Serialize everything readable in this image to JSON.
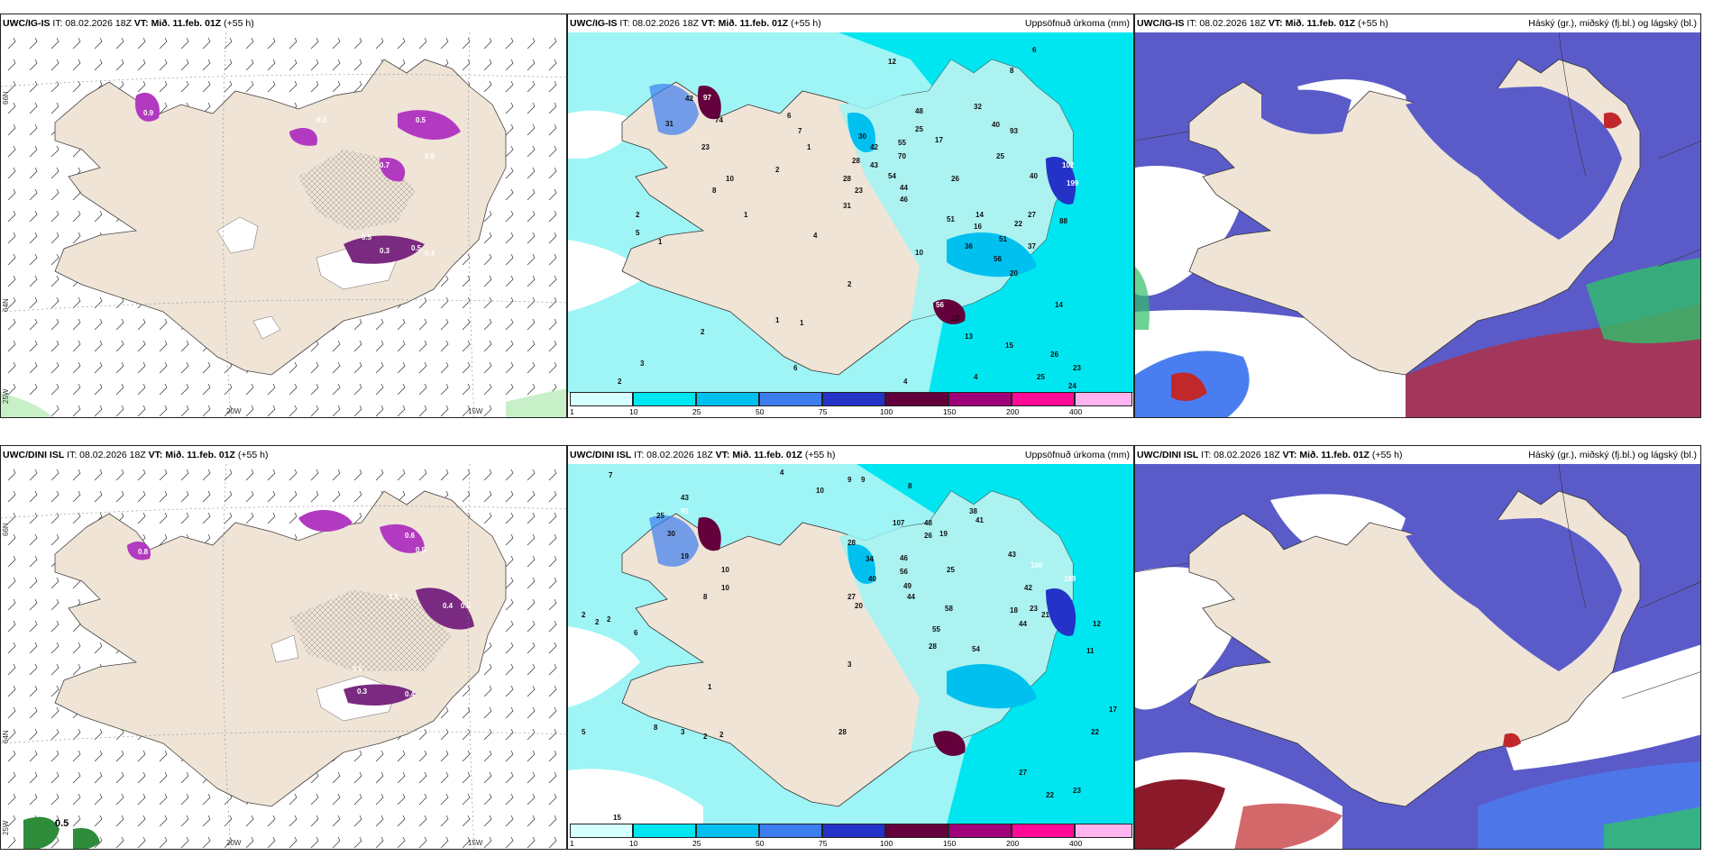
{
  "rows": [
    {
      "model": "UWC/IG-IS",
      "panels": [
        {
          "model": "UWC/IG-IS",
          "it_label": "IT: 08.02.2026 18Z",
          "vt_label": "VT: Mið. 11.feb. 01Z",
          "lead": "(+55 h)",
          "subtitle": ""
        },
        {
          "model": "UWC/IG-IS",
          "it_label": "IT: 08.02.2026 18Z",
          "vt_label": "VT: Mið. 11.feb. 01Z",
          "lead": "(+55 h)",
          "subtitle": "Uppsöfnuð úrkoma (mm)"
        },
        {
          "model": "UWC/IG-IS",
          "it_label": "IT: 08.02.2026 18Z",
          "vt_label": "VT: Mið. 11.feb. 01Z",
          "lead": "(+55 h)",
          "subtitle": "Háský (gr.), miðský (fj.bl.) og lágský (bl.)"
        }
      ],
      "precip_labels": [
        "42",
        "97",
        "74",
        "31",
        "23",
        "10",
        "8",
        "6",
        "7",
        "1",
        "2",
        "1",
        "2",
        "5",
        "1",
        "4",
        "2",
        "1",
        "1",
        "2",
        "3",
        "2",
        "4",
        "6",
        "48",
        "30",
        "42",
        "25",
        "28",
        "43",
        "23",
        "28",
        "54",
        "44",
        "46",
        "70",
        "55",
        "17",
        "32",
        "40",
        "93",
        "26",
        "25",
        "51",
        "16",
        "14",
        "22",
        "27",
        "51",
        "56",
        "88",
        "37",
        "102",
        "199",
        "40",
        "8",
        "12",
        "6",
        "4",
        "13",
        "14",
        "15",
        "26",
        "23",
        "25",
        "24",
        "56",
        "13",
        "10",
        "36",
        "20",
        "31"
      ],
      "precip_labels_pos_note": "",
      "wind_contour_values": [
        "0.9",
        "0.3",
        "0.5",
        "0.7",
        "0.6",
        "0.5",
        "0.3",
        "0.5",
        "0.4",
        "0.6"
      ]
    },
    {
      "model": "UWC/DINI ISL",
      "panels": [
        {
          "model": "UWC/DINI ISL",
          "it_label": "IT: 08.02.2026 18Z",
          "vt_label": "VT: Mið. 11.feb. 01Z",
          "lead": "(+55 h)",
          "subtitle": ""
        },
        {
          "model": "UWC/DINI ISL",
          "it_label": "IT: 08.02.2026 18Z",
          "vt_label": "VT: Mið. 11.feb. 01Z",
          "lead": "(+55 h)",
          "subtitle": "Uppsöfnuð úrkoma (mm)"
        },
        {
          "model": "UWC/DINI ISL",
          "it_label": "IT: 08.02.2026 18Z",
          "vt_label": "VT: Mið. 11.feb. 01Z",
          "lead": "(+55 h)",
          "subtitle": "Háský (gr.), miðský (fj.bl.) og lágský (bl.)"
        }
      ],
      "precip_labels": [
        "7",
        "4",
        "10",
        "9",
        "9",
        "8",
        "43",
        "25",
        "91",
        "30",
        "19",
        "10",
        "10",
        "8",
        "2",
        "6",
        "2",
        "2",
        "28",
        "34",
        "40",
        "107",
        "46",
        "56",
        "49",
        "44",
        "27",
        "20",
        "48",
        "26",
        "19",
        "25",
        "38",
        "41",
        "43",
        "100",
        "42",
        "189",
        "28",
        "55",
        "54",
        "58",
        "23",
        "44",
        "18",
        "21",
        "12",
        "11",
        "5",
        "8",
        "3",
        "2",
        "2",
        "1",
        "3",
        "28",
        "15",
        "17",
        "22",
        "27",
        "22",
        "23"
      ],
      "wind_contour_values": [
        "0.6",
        "0.5",
        "0.8",
        "0.4",
        "0.6",
        "0.5",
        "0.3",
        "0.4",
        "0.5"
      ],
      "legend_value": "0.5"
    }
  ],
  "axes": {
    "lon_labels": [
      "20W",
      "15W"
    ],
    "lat_labels": [
      "66N",
      "64N",
      "25W"
    ]
  },
  "colorbar": {
    "ticks": [
      "1",
      "10",
      "25",
      "50",
      "75",
      "100",
      "150",
      "200",
      "400"
    ],
    "colors": [
      "#d6ffff",
      "#00e6f0",
      "#00c0f0",
      "#3c7df0",
      "#2432c8",
      "#64003c",
      "#a0007a",
      "#ff0a96",
      "#ffb4f0"
    ]
  },
  "colors": {
    "land": "#f0e4d6",
    "sea_precip_light": "#9ff5f5",
    "cloud_low": "#5a5bc8",
    "cloud_mid": "#4a7ef0",
    "cloud_high_green": "#2fbf6a",
    "cloud_red": "#c0282c",
    "wind_purple": "#b23ac0",
    "wind_dark": "#7a2a80"
  }
}
